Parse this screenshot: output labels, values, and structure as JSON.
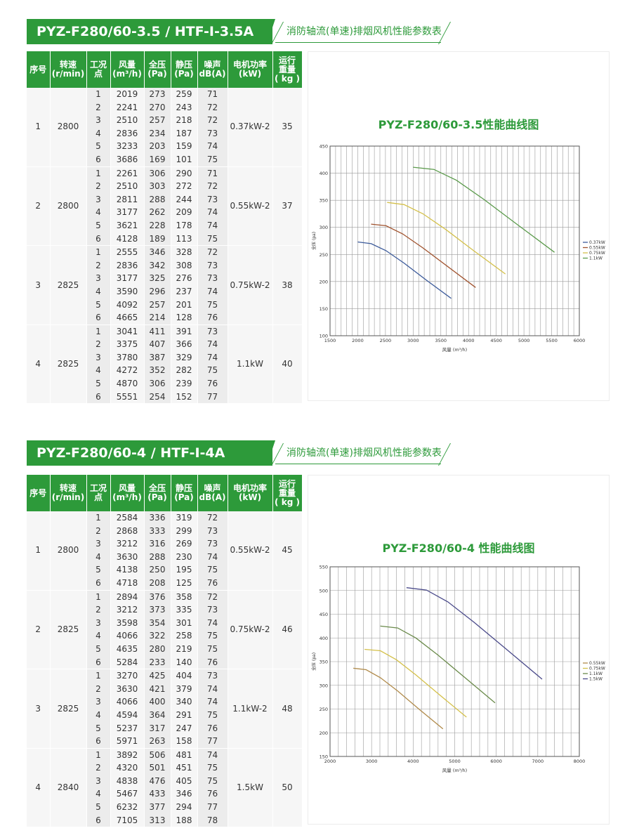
{
  "sections": [
    {
      "banner_title": "PYZ-F280/60-3.5  /  HTF-I-3.5A",
      "banner_sub": "消防轴流(单速)排烟风机性能参数表",
      "headers": [
        "序号",
        "转速\n(r/min)",
        "工况\n点",
        "风量\n(m³/h)",
        "全压\n(Pa)",
        "静压\n(Pa)",
        "噪声\ndB(A)",
        "电机功率\n(kW)",
        "运行\n重量\n( kg )"
      ],
      "groups": [
        {
          "no": "1",
          "speed": "2800",
          "power": "0.37kW-2",
          "weight": "35",
          "rows": [
            [
              "1",
              "2019",
              "273",
              "259",
              "71"
            ],
            [
              "2",
              "2241",
              "270",
              "243",
              "72"
            ],
            [
              "3",
              "2510",
              "257",
              "218",
              "72"
            ],
            [
              "4",
              "2836",
              "234",
              "187",
              "73"
            ],
            [
              "5",
              "3233",
              "203",
              "159",
              "74"
            ],
            [
              "6",
              "3686",
              "169",
              "101",
              "75"
            ]
          ]
        },
        {
          "no": "2",
          "speed": "2800",
          "power": "0.55kW-2",
          "weight": "37",
          "rows": [
            [
              "1",
              "2261",
              "306",
              "290",
              "71"
            ],
            [
              "2",
              "2510",
              "303",
              "272",
              "72"
            ],
            [
              "3",
              "2811",
              "288",
              "244",
              "73"
            ],
            [
              "4",
              "3177",
              "262",
              "209",
              "74"
            ],
            [
              "5",
              "3621",
              "228",
              "178",
              "74"
            ],
            [
              "6",
              "4128",
              "189",
              "113",
              "75"
            ]
          ]
        },
        {
          "no": "3",
          "speed": "2825",
          "power": "0.75kW-2",
          "weight": "38",
          "rows": [
            [
              "1",
              "2555",
              "346",
              "328",
              "72"
            ],
            [
              "2",
              "2836",
              "342",
              "308",
              "73"
            ],
            [
              "3",
              "3177",
              "325",
              "276",
              "73"
            ],
            [
              "4",
              "3590",
              "296",
              "237",
              "74"
            ],
            [
              "5",
              "4092",
              "257",
              "201",
              "75"
            ],
            [
              "6",
              "4665",
              "214",
              "128",
              "76"
            ]
          ]
        },
        {
          "no": "4",
          "speed": "2825",
          "power": "1.1kW",
          "weight": "40",
          "rows": [
            [
              "1",
              "3041",
              "411",
              "391",
              "73"
            ],
            [
              "2",
              "3375",
              "407",
              "366",
              "74"
            ],
            [
              "3",
              "3780",
              "387",
              "329",
              "74"
            ],
            [
              "4",
              "4272",
              "352",
              "282",
              "75"
            ],
            [
              "5",
              "4870",
              "306",
              "239",
              "76"
            ],
            [
              "6",
              "5551",
              "254",
              "152",
              "77"
            ]
          ]
        }
      ],
      "chart_data": {
        "type": "line",
        "title": "PYZ-F280/60-3.5性能曲线图",
        "xlabel": "风量 (m³/h)",
        "ylabel": "全压 (pa)",
        "xlim": [
          1500,
          6000
        ],
        "ylim": [
          100,
          450
        ],
        "x_ticks": [
          1500,
          2000,
          2500,
          3000,
          3500,
          4000,
          4500,
          5000,
          5500,
          6000
        ],
        "y_ticks": [
          100,
          150,
          200,
          250,
          300,
          350,
          400,
          450
        ],
        "legend_position": "right",
        "series": [
          {
            "name": "0.37kW",
            "color": "#3b5a9a",
            "points": [
              [
                2000,
                273
              ],
              [
                2241,
                270
              ],
              [
                2510,
                257
              ],
              [
                2836,
                234
              ],
              [
                3233,
                203
              ],
              [
                3686,
                169
              ]
            ]
          },
          {
            "name": "0.55kW",
            "color": "#a0522d",
            "points": [
              [
                2240,
                306
              ],
              [
                2510,
                303
              ],
              [
                2811,
                288
              ],
              [
                3177,
                262
              ],
              [
                3621,
                228
              ],
              [
                4128,
                189
              ]
            ]
          },
          {
            "name": "0.75kW",
            "color": "#d4c04a",
            "points": [
              [
                2530,
                346
              ],
              [
                2836,
                342
              ],
              [
                3177,
                325
              ],
              [
                3590,
                296
              ],
              [
                4092,
                257
              ],
              [
                4665,
                214
              ]
            ]
          },
          {
            "name": "1.1kW",
            "color": "#5a9a4a",
            "points": [
              [
                3000,
                411
              ],
              [
                3375,
                407
              ],
              [
                3780,
                387
              ],
              [
                4272,
                352
              ],
              [
                4870,
                306
              ],
              [
                5551,
                254
              ]
            ]
          }
        ]
      }
    },
    {
      "banner_title": "PYZ-F280/60-4  /  HTF-I-4A",
      "banner_sub": "消防轴流(单速)排烟风机性能参数表",
      "headers": [
        "序号",
        "转速\n(r/min)",
        "工况\n点",
        "风量\n(m³/h)",
        "全压\n(Pa)",
        "静压\n(Pa)",
        "噪声\ndB(A)",
        "电机功率\n(kW)",
        "运行\n重量\n( kg )"
      ],
      "groups": [
        {
          "no": "1",
          "speed": "2800",
          "power": "0.55kW-2",
          "weight": "45",
          "rows": [
            [
              "1",
              "2584",
              "336",
              "319",
              "72"
            ],
            [
              "2",
              "2868",
              "333",
              "299",
              "73"
            ],
            [
              "3",
              "3212",
              "316",
              "269",
              "73"
            ],
            [
              "4",
              "3630",
              "288",
              "230",
              "74"
            ],
            [
              "5",
              "4138",
              "250",
              "195",
              "75"
            ],
            [
              "6",
              "4718",
              "208",
              "125",
              "76"
            ]
          ]
        },
        {
          "no": "2",
          "speed": "2825",
          "power": "0.75kW-2",
          "weight": "46",
          "rows": [
            [
              "1",
              "2894",
              "376",
              "358",
              "72"
            ],
            [
              "2",
              "3212",
              "373",
              "335",
              "73"
            ],
            [
              "3",
              "3598",
              "354",
              "301",
              "74"
            ],
            [
              "4",
              "4066",
              "322",
              "258",
              "75"
            ],
            [
              "5",
              "4635",
              "280",
              "219",
              "75"
            ],
            [
              "6",
              "5284",
              "233",
              "140",
              "76"
            ]
          ]
        },
        {
          "no": "3",
          "speed": "2825",
          "power": "1.1kW-2",
          "weight": "48",
          "rows": [
            [
              "1",
              "3270",
              "425",
              "404",
              "73"
            ],
            [
              "2",
              "3630",
              "421",
              "379",
              "74"
            ],
            [
              "3",
              "4066",
              "400",
              "340",
              "74"
            ],
            [
              "4",
              "4594",
              "364",
              "291",
              "75"
            ],
            [
              "5",
              "5237",
              "317",
              "247",
              "76"
            ],
            [
              "6",
              "5971",
              "263",
              "158",
              "77"
            ]
          ]
        },
        {
          "no": "4",
          "speed": "2840",
          "power": "1.5kW",
          "weight": "50",
          "rows": [
            [
              "1",
              "3892",
              "506",
              "481",
              "74"
            ],
            [
              "2",
              "4320",
              "501",
              "451",
              "75"
            ],
            [
              "3",
              "4838",
              "476",
              "405",
              "75"
            ],
            [
              "4",
              "5467",
              "433",
              "346",
              "76"
            ],
            [
              "5",
              "6232",
              "377",
              "294",
              "77"
            ],
            [
              "6",
              "7105",
              "313",
              "188",
              "78"
            ]
          ]
        }
      ],
      "chart_data": {
        "type": "line",
        "title": "PYZ-F280/60-4 性能曲线图",
        "xlabel": "风量 (m³/h)",
        "ylabel": "全压 (pa)",
        "xlim": [
          2000,
          8000
        ],
        "ylim": [
          150,
          550
        ],
        "x_ticks": [
          2000,
          3000,
          4000,
          5000,
          6000,
          7000,
          8000
        ],
        "y_ticks": [
          150,
          200,
          250,
          300,
          350,
          400,
          450,
          500,
          550
        ],
        "legend_position": "right",
        "series": [
          {
            "name": "0.55kW",
            "color": "#b08a4a",
            "points": [
              [
                2560,
                336
              ],
              [
                2868,
                333
              ],
              [
                3212,
                316
              ],
              [
                3630,
                288
              ],
              [
                4138,
                250
              ],
              [
                4718,
                208
              ]
            ]
          },
          {
            "name": "0.75kW",
            "color": "#d4c04a",
            "points": [
              [
                2830,
                376
              ],
              [
                3212,
                373
              ],
              [
                3598,
                354
              ],
              [
                4066,
                322
              ],
              [
                4635,
                280
              ],
              [
                5284,
                233
              ]
            ]
          },
          {
            "name": "1.1kW",
            "color": "#6a8a4a",
            "points": [
              [
                3210,
                425
              ],
              [
                3630,
                421
              ],
              [
                4066,
                400
              ],
              [
                4594,
                364
              ],
              [
                5237,
                317
              ],
              [
                5971,
                263
              ]
            ]
          },
          {
            "name": "1.5kW",
            "color": "#4a4a8a",
            "points": [
              [
                3840,
                506
              ],
              [
                4320,
                501
              ],
              [
                4838,
                476
              ],
              [
                5467,
                433
              ],
              [
                6232,
                377
              ],
              [
                7105,
                313
              ]
            ]
          }
        ]
      }
    }
  ]
}
